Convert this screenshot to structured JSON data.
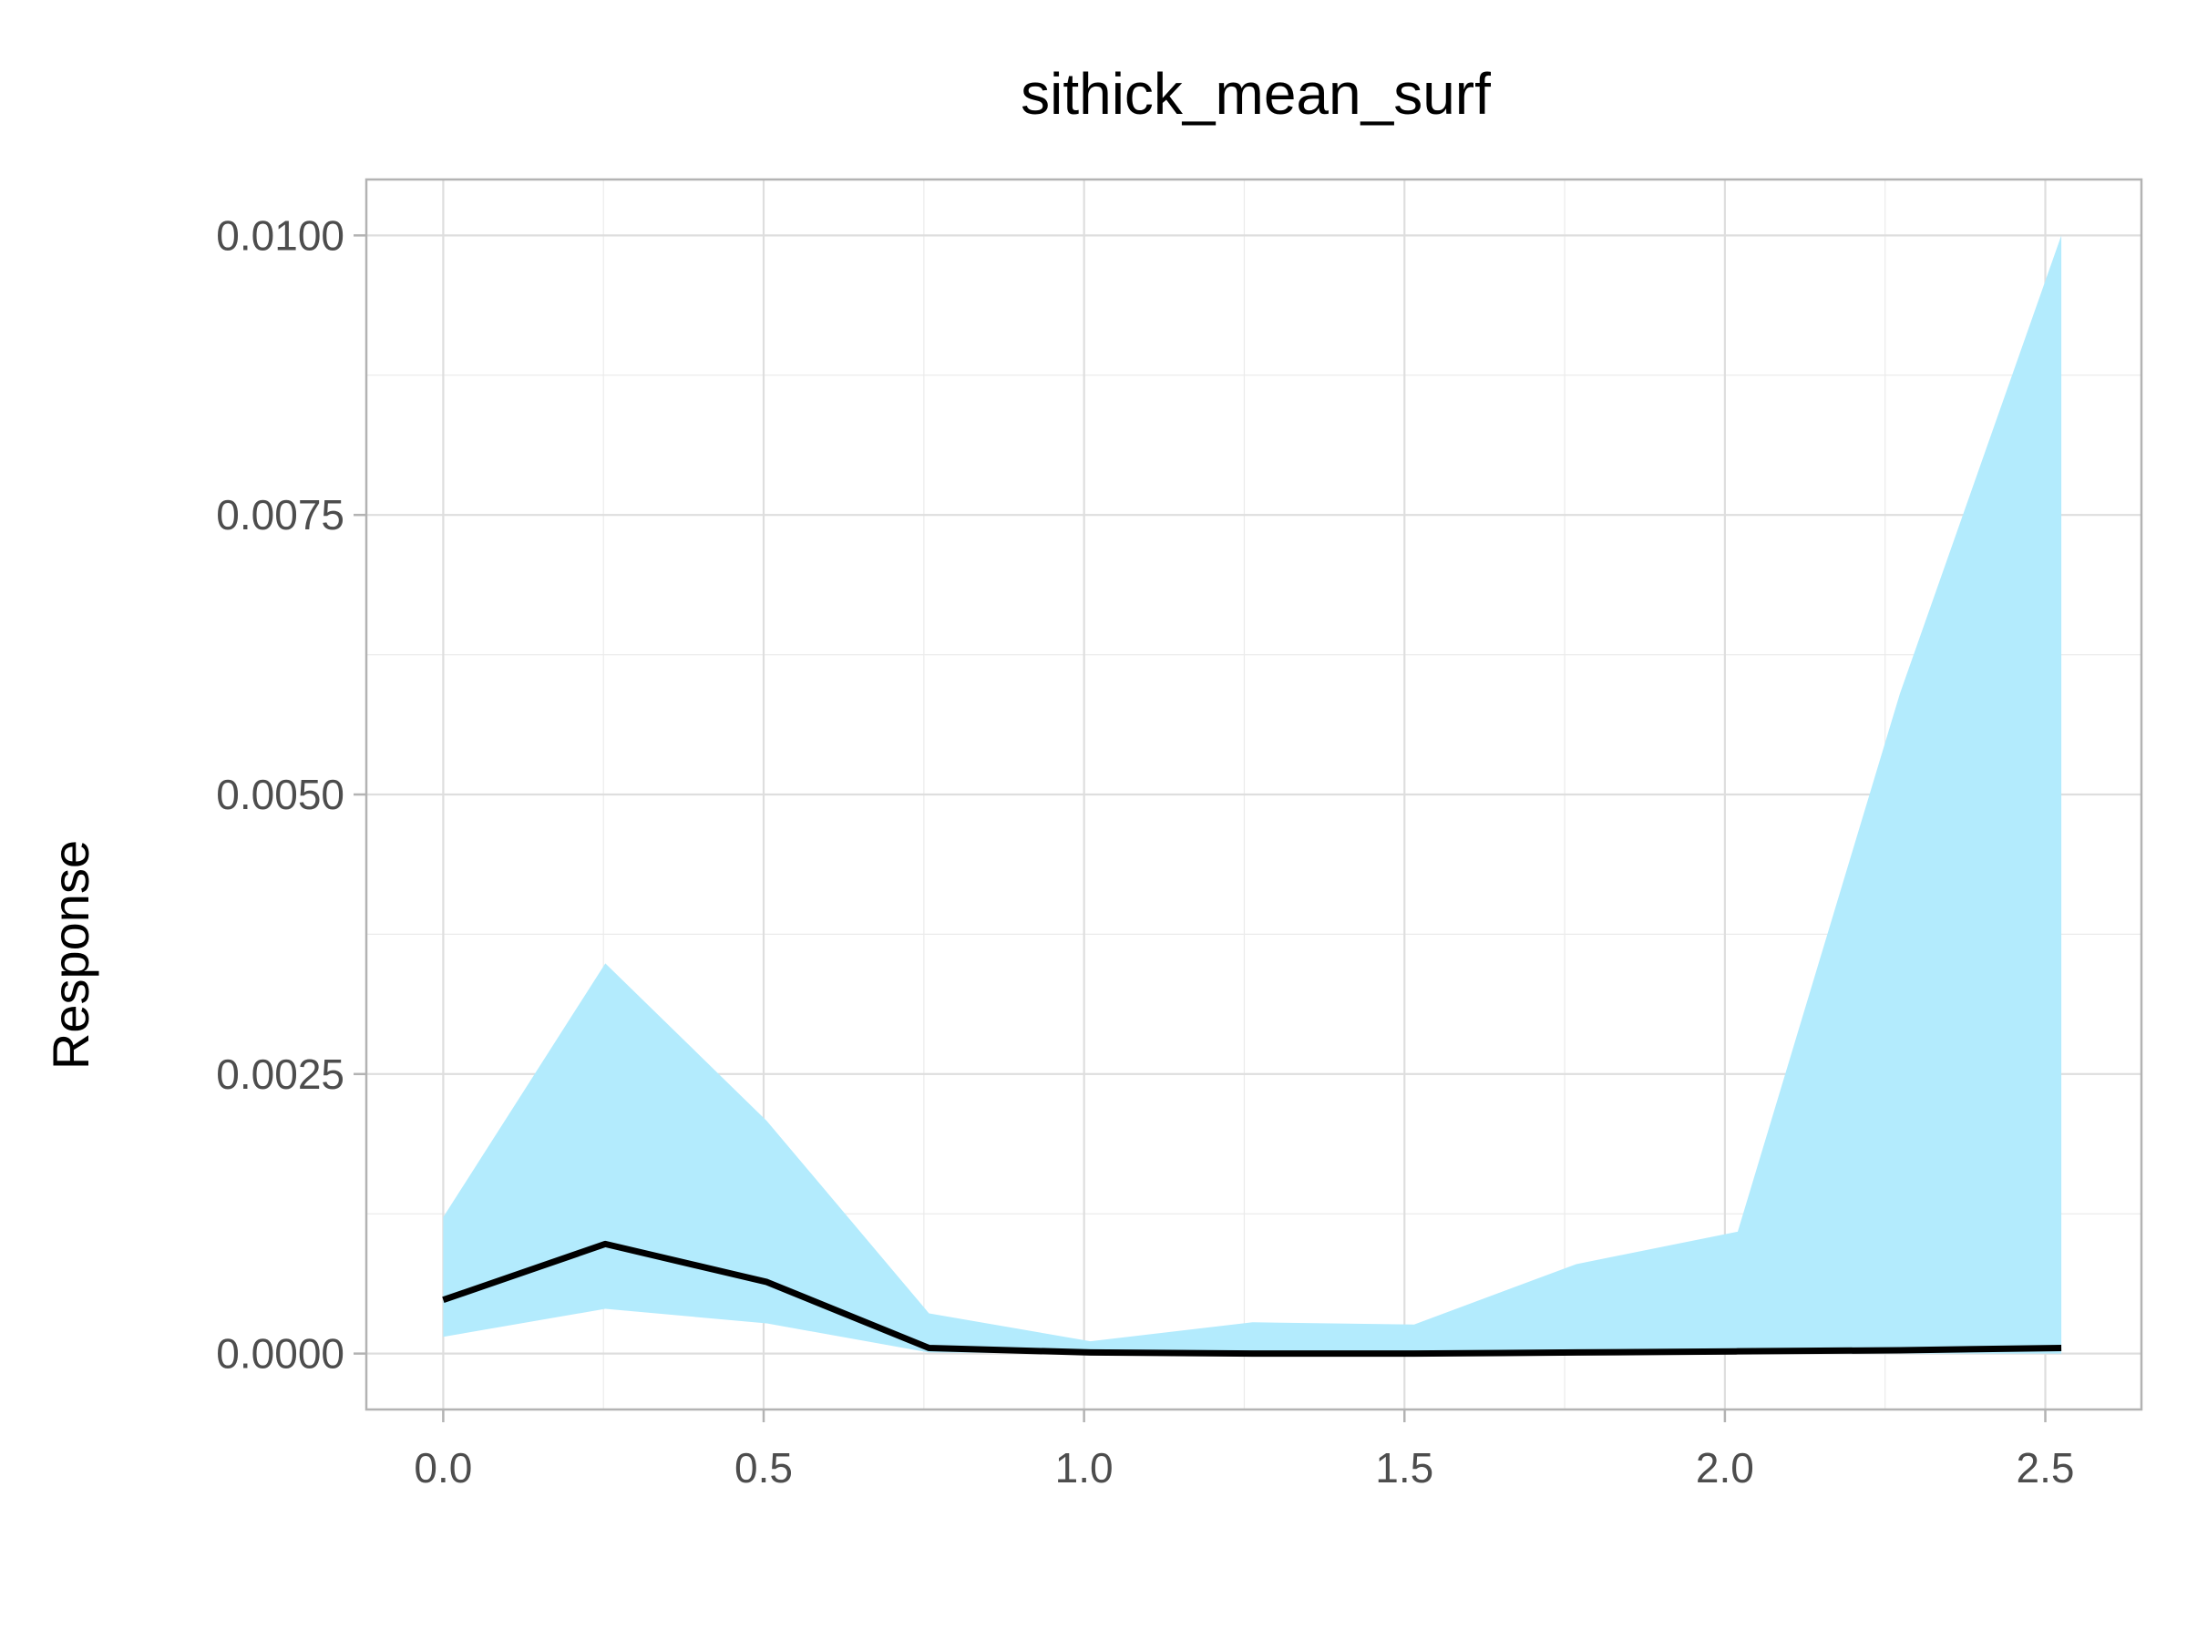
{
  "chart_data": {
    "type": "line",
    "title": "sithick_mean_surf",
    "xlabel": "",
    "ylabel": "Response",
    "xlim": [
      -0.12,
      2.65
    ],
    "ylim": [
      -0.0005,
      0.0105
    ],
    "x_ticks": [
      0.0,
      0.5,
      1.0,
      1.5,
      2.0,
      2.5
    ],
    "x_tick_labels": [
      "0.0",
      "0.5",
      "1.0",
      "1.5",
      "2.0",
      "2.5"
    ],
    "y_ticks": [
      0.0,
      0.0025,
      0.005,
      0.0075,
      0.01
    ],
    "y_tick_labels": [
      "0.0000",
      "0.0025",
      "0.0050",
      "0.0075",
      "0.0100"
    ],
    "grid": true,
    "series": [
      {
        "kind": "line",
        "color": "#000000",
        "x": [
          0.0,
          0.253,
          0.505,
          0.758,
          1.01,
          1.263,
          1.515,
          1.768,
          2.02,
          2.273,
          2.525
        ],
        "y": [
          0.00048,
          0.00098,
          0.00064,
          5e-05,
          1e-05,
          0.0,
          0.0,
          1e-05,
          2e-05,
          3e-05,
          5e-05
        ]
      },
      {
        "kind": "band",
        "color": "#b3ebfd",
        "x": [
          0.0,
          0.253,
          0.505,
          0.758,
          1.01,
          1.263,
          1.515,
          1.768,
          2.02,
          2.273,
          2.525
        ],
        "lower": [
          0.00015,
          0.0004,
          0.00027,
          1e-05,
          0.0,
          0.0,
          0.0,
          0.0,
          0.0,
          0.0,
          0.0
        ],
        "upper": [
          0.00122,
          0.00349,
          0.00208,
          0.00036,
          0.00011,
          0.00028,
          0.00026,
          0.0008,
          0.00109,
          0.0059,
          0.01
        ]
      }
    ]
  }
}
